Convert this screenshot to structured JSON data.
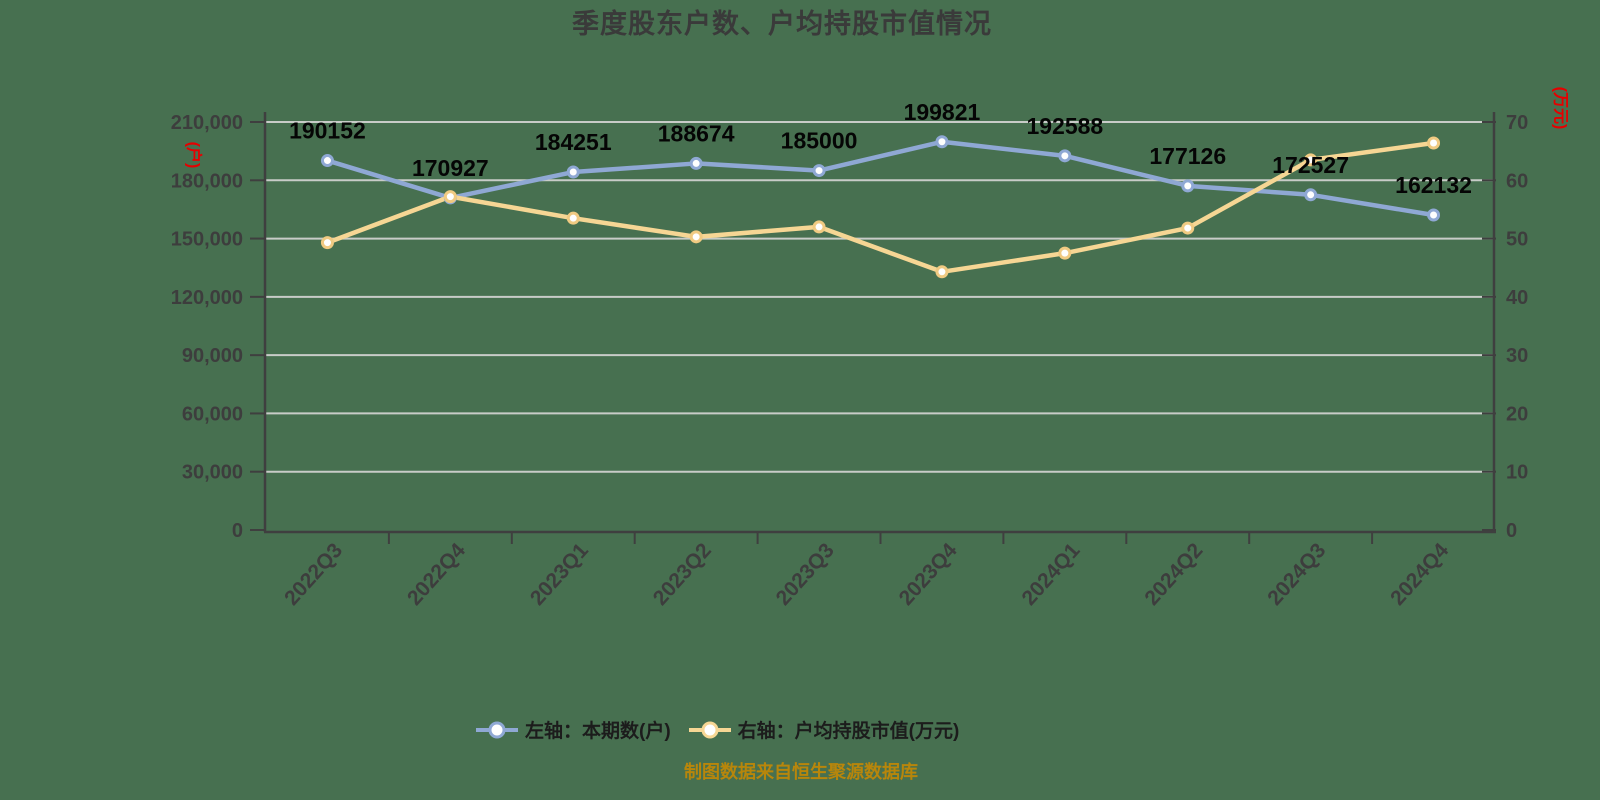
{
  "title": "季度股东户数、户均持股市值情况",
  "source_note": "制图数据来自恒生聚源数据库",
  "left_axis_unit": "(户)",
  "right_axis_unit": "(万元)",
  "legend": {
    "left_label": "左轴：本期数(户)",
    "right_label": "右轴：户均持股市值(万元)"
  },
  "colors": {
    "background": "#477050",
    "gridline": "#c8ccc8",
    "axis": "#3f3f3f",
    "tick_label": "#3d3d3d",
    "data_label": "#050505",
    "unit_label": "#e60000",
    "source_note": "#b8860b",
    "shareholders_line": "#8fa8d4",
    "value_line": "#f6d694",
    "value_marker_rim": "#f0ca82",
    "marker_fill": "#fefefe"
  },
  "chart_data": {
    "type": "line",
    "categories": [
      "2022Q3",
      "2022Q4",
      "2023Q1",
      "2023Q2",
      "2023Q3",
      "2023Q4",
      "2024Q1",
      "2024Q2",
      "2024Q3",
      "2024Q4"
    ],
    "series": [
      {
        "name": "左轴：本期数(户)",
        "axis": "left",
        "values": [
          190152,
          170927,
          184251,
          188674,
          185000,
          199821,
          192588,
          177126,
          172527,
          162132
        ],
        "data_labels": [
          "190152",
          "170927",
          "184251",
          "188674",
          "185000",
          "199821",
          "192588",
          "177126",
          "172527",
          "162132"
        ]
      },
      {
        "name": "右轴：户均持股市值(万元)",
        "axis": "right",
        "values": [
          49.3,
          57.2,
          53.5,
          50.3,
          52.0,
          44.3,
          47.5,
          51.8,
          63.5,
          66.4
        ],
        "data_labels": []
      }
    ],
    "left_axis": {
      "min": 0,
      "max": 210000,
      "step": 30000,
      "ticks": [
        "0",
        "30,000",
        "60,000",
        "90,000",
        "120,000",
        "150,000",
        "180,000",
        "210,000"
      ]
    },
    "right_axis": {
      "min": 0,
      "max": 70,
      "step": 10,
      "ticks": [
        "0",
        "10",
        "20",
        "30",
        "40",
        "50",
        "60",
        "70"
      ]
    },
    "grid": true,
    "legend_position": "bottom"
  }
}
